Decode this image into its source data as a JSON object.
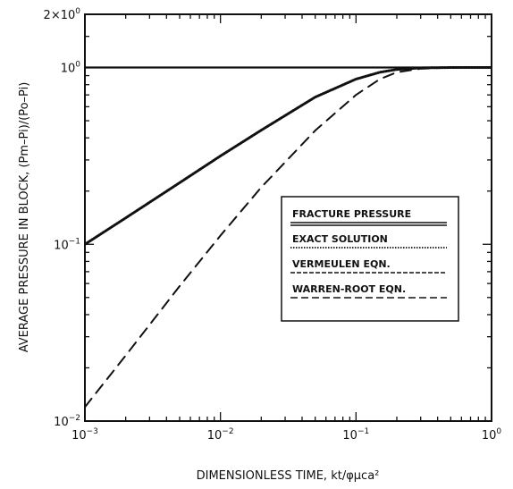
{
  "chart_data": {
    "type": "line",
    "xlabel": "DIMENSIONLESS TIME,  kt/φμca²",
    "ylabel": "AVERAGE PRESSURE IN BLOCK,  (Pm–Pi)/(Po–Pi)",
    "x_scale": "log",
    "y_scale": "log",
    "xlim": [
      0.001,
      1
    ],
    "ylim": [
      0.01,
      2
    ],
    "x_ticks": [
      {
        "value": 0.001,
        "base": "10",
        "exp": "−3"
      },
      {
        "value": 0.01,
        "base": "10",
        "exp": "−2"
      },
      {
        "value": 0.1,
        "base": "10",
        "exp": "−1"
      },
      {
        "value": 1,
        "base": "10",
        "exp": "0"
      }
    ],
    "y_ticks": [
      {
        "value": 0.01,
        "base": "10",
        "exp": "−2"
      },
      {
        "value": 0.1,
        "base": "10",
        "exp": "−1"
      },
      {
        "value": 1,
        "base": "10",
        "exp": "0"
      },
      {
        "value": 2,
        "base": "2×10",
        "exp": "0"
      }
    ],
    "legend_position": "center-right",
    "series": [
      {
        "name": "FRACTURE PRESSURE",
        "style": "solid-double",
        "x": [
          0.001,
          1
        ],
        "y": [
          1.0,
          1.0
        ]
      },
      {
        "name": "EXACT SOLUTION",
        "style": "dotted",
        "x": [
          0.001,
          0.002,
          0.005,
          0.01,
          0.02,
          0.05,
          0.1,
          0.15,
          0.2,
          0.3,
          0.5,
          1.0
        ],
        "y": [
          0.1,
          0.141,
          0.223,
          0.316,
          0.442,
          0.68,
          0.86,
          0.94,
          0.975,
          0.995,
          1.0,
          1.0
        ]
      },
      {
        "name": "VERMEULEN EQN.",
        "style": "dash-underline",
        "x": [
          0.001,
          0.002,
          0.005,
          0.01,
          0.02,
          0.05,
          0.1,
          0.15,
          0.2,
          0.3,
          0.5,
          1.0
        ],
        "y": [
          0.1,
          0.141,
          0.223,
          0.316,
          0.442,
          0.68,
          0.86,
          0.94,
          0.975,
          0.995,
          1.0,
          1.0
        ]
      },
      {
        "name": "WARREN-ROOT EQN.",
        "style": "dashed",
        "x": [
          0.001,
          0.002,
          0.005,
          0.01,
          0.02,
          0.05,
          0.1,
          0.15,
          0.2,
          0.3,
          0.5,
          1.0
        ],
        "y": [
          0.012,
          0.0235,
          0.058,
          0.112,
          0.21,
          0.44,
          0.7,
          0.86,
          0.94,
          0.985,
          1.0,
          1.0
        ]
      }
    ]
  }
}
